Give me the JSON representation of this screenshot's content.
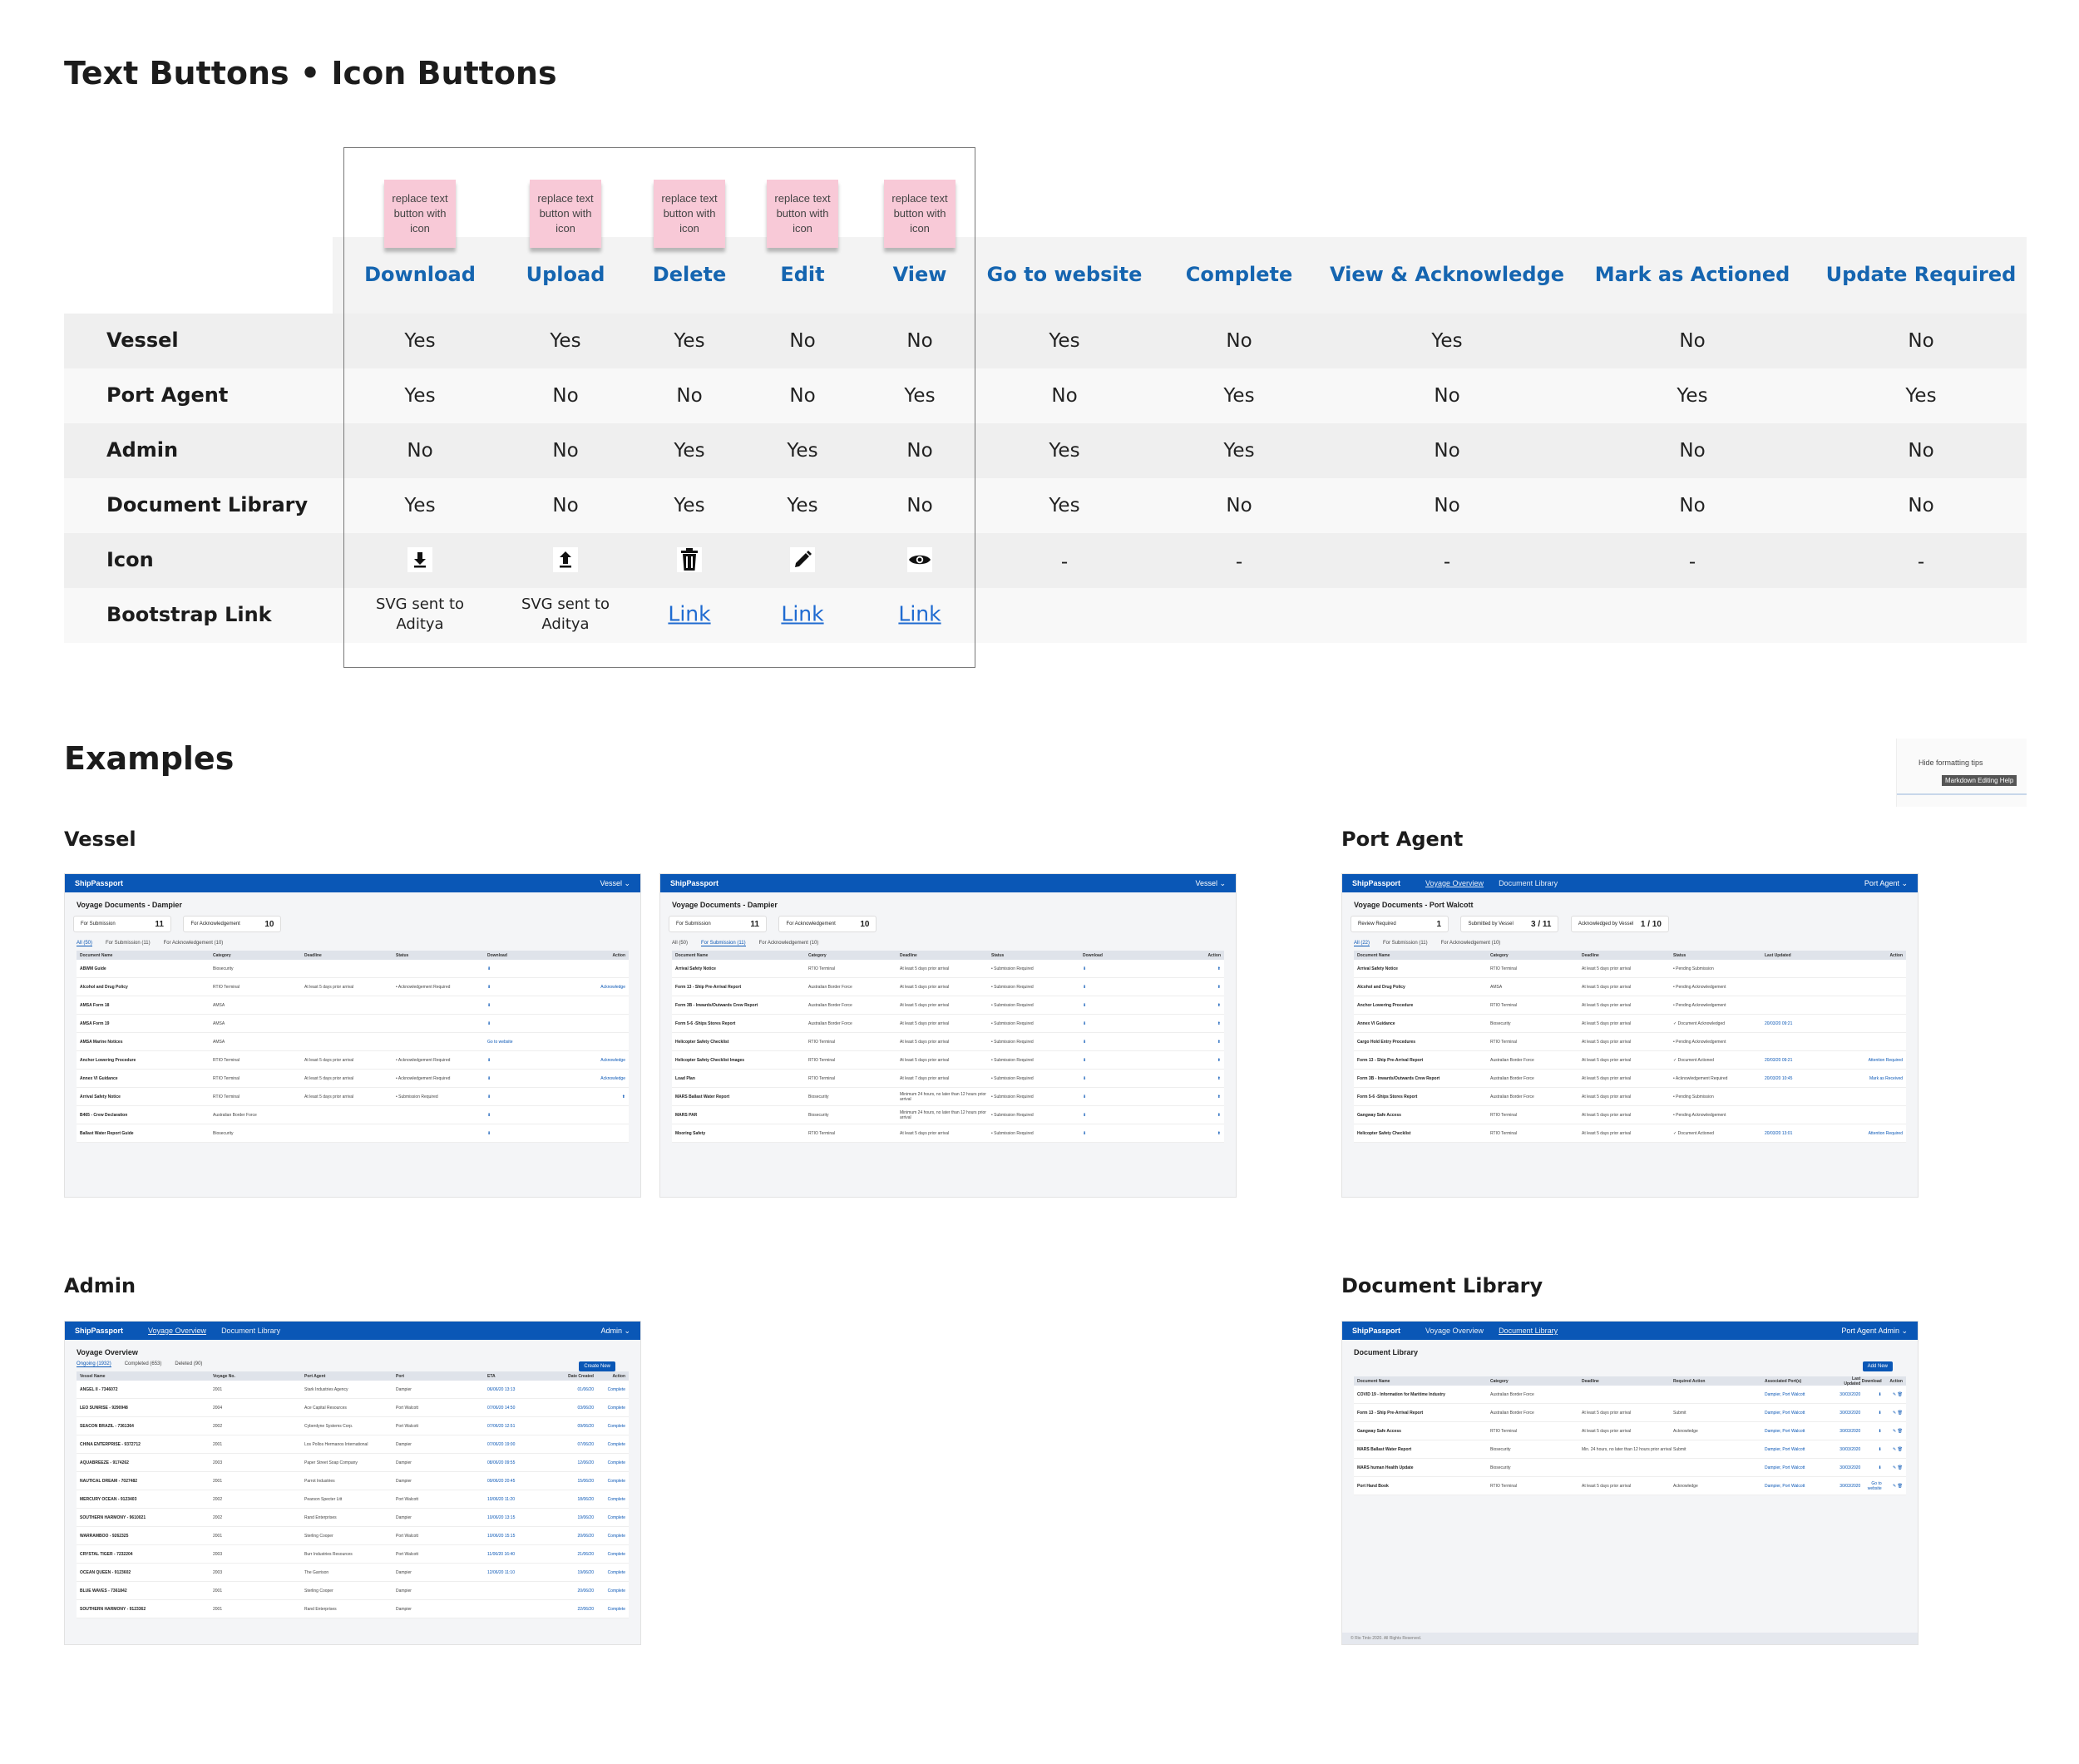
{
  "page": {
    "title": "Text Buttons • Icon Buttons",
    "examples_title": "Examples"
  },
  "stickies": [
    "replace text button with icon",
    "replace text button with icon",
    "replace text button with icon",
    "replace text button with icon",
    "replace text button with icon"
  ],
  "columns": [
    "Download",
    "Upload",
    "Delete",
    "Edit",
    "View",
    "Go to website",
    "Complete",
    "View & Acknowledge",
    "Mark as Actioned",
    "Update Required"
  ],
  "rows": [
    {
      "label": "Vessel",
      "values": [
        "Yes",
        "Yes",
        "Yes",
        "No",
        "No",
        "Yes",
        "No",
        "Yes",
        "No",
        "No"
      ]
    },
    {
      "label": "Port Agent",
      "values": [
        "Yes",
        "No",
        "No",
        "No",
        "Yes",
        "No",
        "Yes",
        "No",
        "Yes",
        "Yes"
      ]
    },
    {
      "label": "Admin",
      "values": [
        "No",
        "No",
        "Yes",
        "Yes",
        "No",
        "Yes",
        "Yes",
        "No",
        "No",
        "No"
      ]
    },
    {
      "label": "Document Library",
      "values": [
        "Yes",
        "No",
        "Yes",
        "Yes",
        "No",
        "Yes",
        "No",
        "No",
        "No",
        "No"
      ]
    }
  ],
  "icon_row": {
    "label": "Icon",
    "icons": [
      "download-icon",
      "upload-icon",
      "trash-icon",
      "pencil-icon",
      "eye-icon"
    ],
    "dashes": [
      "-",
      "-",
      "-",
      "-",
      "-"
    ]
  },
  "bootstrap_row": {
    "label": "Bootstrap Link",
    "values": [
      "SVG sent to Aditya",
      "SVG sent to Aditya",
      "Link",
      "Link",
      "Link"
    ]
  },
  "overlay": {
    "hide_tips": "Hide formatting tips",
    "tooltip": "Markdown Editing Help"
  },
  "sections": {
    "vessel": "Vessel",
    "port_agent": "Port Agent",
    "admin": "Admin",
    "document_library": "Document Library"
  },
  "shots": {
    "vessel1": {
      "brand": "ShipPassport",
      "user": "Vessel ⌄",
      "title": "Voyage Documents - Dampier",
      "card1": "For Submission",
      "card1_n": "11",
      "card2": "For Acknowledgement",
      "card2_n": "10",
      "tabs": [
        "All (50)",
        "For Submission (11)",
        "For Acknowledgement (10)"
      ],
      "headers": [
        "Document Name",
        "Category",
        "Deadline",
        "Status",
        "Download",
        "Action"
      ],
      "rows": [
        [
          "ABWM Guide",
          "Biosecurity",
          "",
          "",
          "⬇",
          ""
        ],
        [
          "Alcohol and Drug Policy",
          "RTIO Terminal",
          "At least 5 days prior arrival",
          "• Acknowledgement Required",
          "⬇",
          "Acknowledge"
        ],
        [
          "AMSA Form 18",
          "AMSA",
          "",
          "",
          "⬇",
          ""
        ],
        [
          "AMSA Form 19",
          "AMSA",
          "",
          "",
          "⬇",
          ""
        ],
        [
          "AMSA Marine Notices",
          "AMSA",
          "",
          "",
          "Go to website",
          ""
        ],
        [
          "Anchor Lowering Procedure",
          "RTIO Terminal",
          "At least 5 days prior arrival",
          "• Acknowledgement Required",
          "⬇",
          "Acknowledge"
        ],
        [
          "Annex VI Guidance",
          "RTIO Terminal",
          "At least 5 days prior arrival",
          "• Acknowledgement Required",
          "⬇",
          "Acknowledge"
        ],
        [
          "Arrival Safety Notice",
          "RTIO Terminal",
          "At least 5 days prior arrival",
          "• Submission Required",
          "⬇",
          "⬆"
        ],
        [
          "B465 - Crew Declaration",
          "Australian Border Force",
          "",
          "",
          "⬇",
          ""
        ],
        [
          "Ballast Water Report Guide",
          "Biosecurity",
          "",
          "",
          "⬇",
          ""
        ]
      ]
    },
    "vessel2": {
      "brand": "ShipPassport",
      "user": "Vessel ⌄",
      "title": "Voyage Documents - Dampier",
      "card1": "For Submission",
      "card1_n": "11",
      "card2": "For Acknowledgement",
      "card2_n": "10",
      "tabs": [
        "All (50)",
        "For Submission (11)",
        "For Acknowledgement (10)"
      ],
      "headers": [
        "Document Name",
        "Category",
        "Deadline",
        "Status",
        "Download",
        "Action"
      ],
      "rows": [
        [
          "Arrival Safety Notice",
          "RTIO Terminal",
          "At least 5 days prior arrival",
          "• Submission Required",
          "⬇",
          "⬆"
        ],
        [
          "Form 13 - Ship Pre-Arrival Report",
          "Australian Border Force",
          "At least 5 days prior arrival",
          "• Submission Required",
          "⬇",
          "⬆"
        ],
        [
          "Form 3B - Inwards/Outwards Crew Report",
          "Australian Border Force",
          "At least 5 days prior arrival",
          "• Submission Required",
          "⬇",
          "⬆"
        ],
        [
          "Form 5-6 -Ships Stores Report",
          "Australian Border Force",
          "At least 5 days prior arrival",
          "• Submission Required",
          "⬇",
          "⬆"
        ],
        [
          "Helicopter Safety Checklist",
          "RTIO Terminal",
          "At least 5 days prior arrival",
          "• Submission Required",
          "⬇",
          "⬆"
        ],
        [
          "Helicopter Safety Checklist Images",
          "RTIO Terminal",
          "At least 5 days prior arrival",
          "• Submission Required",
          "⬇",
          "⬆"
        ],
        [
          "Load Plan",
          "RTIO Terminal",
          "At least 7 days prior arrival",
          "• Submission Required",
          "⬇",
          "⬆"
        ],
        [
          "MARS Ballast Water Report",
          "Biosecurity",
          "Minimum 24 hours, no later than 12 hours prior arrival",
          "• Submission Required",
          "⬇",
          "⬆"
        ],
        [
          "MARS PAR",
          "Biosecurity",
          "Minimum 24 hours, no later than 12 hours prior arrival",
          "• Submission Required",
          "⬇",
          "⬆"
        ],
        [
          "Mooring Safety",
          "RTIO Terminal",
          "At least 5 days prior arrival",
          "• Submission Required",
          "⬇",
          "⬆"
        ]
      ]
    },
    "port": {
      "brand": "ShipPassport",
      "nav": [
        "Voyage Overview",
        "Document Library"
      ],
      "user": "Port Agent ⌄",
      "title": "Voyage Documents - Port Walcott",
      "card1": "Review Required",
      "card1_n": "1",
      "card2": "Submitted by Vessel",
      "card2_n": "3 / 11",
      "card3": "Acknowledged by Vessel",
      "card3_n": "1 / 10",
      "tabs": [
        "All (22)",
        "For Submission (11)",
        "For Acknowledgement (10)"
      ],
      "headers": [
        "Document Name",
        "Category",
        "Deadline",
        "Status",
        "Last Updated",
        "Action"
      ],
      "rows": [
        [
          "Arrival Safety Notice",
          "RTIO Terminal",
          "At least 5 days prior arrival",
          "• Pending Submission",
          "",
          ""
        ],
        [
          "Alcohol and Drug Policy",
          "AMSA",
          "At least 5 days prior arrival",
          "• Pending Acknowledgement",
          "",
          ""
        ],
        [
          "Anchor Lowering Procedure",
          "RTIO Terminal",
          "At least 5 days prior arrival",
          "• Pending Acknowledgement",
          "",
          ""
        ],
        [
          "Annex VI Guidance",
          "Biosecurity",
          "At least 5 days prior arrival",
          "✓ Document Acknowledged",
          "20/03/20 09:21",
          ""
        ],
        [
          "Cargo Hold Entry Procedures",
          "RTIO Terminal",
          "At least 5 days prior arrival",
          "• Pending Acknowledgement",
          "",
          ""
        ],
        [
          "Form 13 - Ship Pre-Arrival Report",
          "Australian Border Force",
          "At least 5 days prior arrival",
          "✓ Document Actioned",
          "20/03/20 09:21",
          "Attention Required"
        ],
        [
          "Form 3B - Inwards/Outwards Crew Report",
          "Australian Border Force",
          "At least 5 days prior arrival",
          "• Acknowledgement Required",
          "20/03/20 10:45",
          "Mark as Received"
        ],
        [
          "Form 5-6 -Ships Stores Report",
          "Australian Border Force",
          "At least 5 days prior arrival",
          "• Pending Submission",
          "",
          ""
        ],
        [
          "Gangway Safe Access",
          "RTIO Terminal",
          "At least 5 days prior arrival",
          "• Pending Acknowledgement",
          "",
          ""
        ],
        [
          "Helicopter Safety Checklist",
          "RTIO Terminal",
          "At least 5 days prior arrival",
          "✓ Document Actioned",
          "20/03/20 13:01",
          "Attention Required"
        ]
      ]
    },
    "admin": {
      "brand": "ShipPassport",
      "nav": [
        "Voyage Overview",
        "Document Library"
      ],
      "user": "Admin ⌄",
      "title": "Voyage Overview",
      "tabs": [
        "Ongoing (1932)",
        "Completed (653)",
        "Deleted (90)"
      ],
      "new_btn": "Create New",
      "headers": [
        "Vessel Name",
        "Voyage No.",
        "Port Agent",
        "Port",
        "ETA",
        "Date Created",
        "Action"
      ],
      "rows": [
        [
          "ANGEL II - 7346072",
          "2001",
          "Stark Industries Agency",
          "Dampier",
          "06/06/20 13:13",
          "01/06/20",
          "Complete"
        ],
        [
          "LEO SUNRISE - 9290948",
          "2004",
          "Ace Capital Resources",
          "Port Walcott",
          "07/06/20 14:50",
          "03/06/20",
          "Complete"
        ],
        [
          "SEACON BRAZIL - 7361364",
          "2002",
          "Cyberdyne Systems Corp.",
          "Port Walcott",
          "07/06/20 12:51",
          "09/06/20",
          "Complete"
        ],
        [
          "CHINA ENTERPRISE - 9372712",
          "2001",
          "Los Pollos Hermanos International",
          "Dampier",
          "07/06/20 19:00",
          "07/06/20",
          "Complete"
        ],
        [
          "AQUABREEZE - 9174262",
          "2003",
          "Paper Street Soap Company",
          "Dampier",
          "08/06/20 09:55",
          "12/06/20",
          "Complete"
        ],
        [
          "NAUTICAL DREAM - 7027482",
          "2001",
          "Parrot Industries",
          "Dampier",
          "09/06/20 20:45",
          "15/06/20",
          "Complete"
        ],
        [
          "MERCURY OCEAN - 9123403",
          "2002",
          "Pearson Specter Litt",
          "Port Walcott",
          "10/06/20 11:20",
          "18/06/20",
          "Complete"
        ],
        [
          "SOUTHERN HARMONY - 9610021",
          "2002",
          "Rand Enterprises",
          "Dampier",
          "10/06/20 13:15",
          "19/06/20",
          "Complete"
        ],
        [
          "WARRAMBOO - 9262325",
          "2001",
          "Sterling Cooper",
          "Port Walcott",
          "10/06/20 15:15",
          "20/06/20",
          "Complete"
        ],
        [
          "CRYSTAL TIGER - 7232204",
          "2003",
          "Burr Industries Resources",
          "Port Walcott",
          "11/06/20 16:40",
          "21/06/20",
          "Complete"
        ],
        [
          "OCEAN QUEEN - 9123602",
          "2003",
          "The Garrison",
          "Dampier",
          "12/06/20 11:10",
          "19/06/20",
          "Complete"
        ],
        [
          "BLUE WAVES - 7361842",
          "2001",
          "Sterling Cooper",
          "Dampier",
          "",
          "20/06/20",
          "Complete"
        ],
        [
          "SOUTHERN HARMONY - 9123362",
          "2001",
          "Rand Enterprises",
          "Dampier",
          "",
          "22/06/20",
          "Complete"
        ]
      ]
    },
    "library": {
      "brand": "ShipPassport",
      "nav": [
        "Voyage Overview",
        "Document Library"
      ],
      "user": "Port Agent Admin ⌄",
      "title": "Document Library",
      "new_btn": "Add New",
      "headers": [
        "Document Name",
        "Category",
        "Deadline",
        "Required Action",
        "Associated Port(s)",
        "Last Updated",
        "Download",
        "Action"
      ],
      "rows": [
        [
          "COVID 19 - Information for Maritime Industry",
          "Australian Border Force",
          "",
          "",
          "Dampier, Port Walcott",
          "30/03/2020",
          "⬇",
          "✎ 🗑"
        ],
        [
          "Form 13 - Ship Pre-Arrival Report",
          "Australian Border Force",
          "At least 5 days prior arrival",
          "Submit",
          "Dampier, Port Walcott",
          "30/03/2020",
          "⬇",
          "✎ 🗑"
        ],
        [
          "Gangway Safe Access",
          "RTIO Terminal",
          "At least 5 days prior arrival",
          "Acknowledge",
          "Dampier, Port Walcott",
          "30/03/2020",
          "⬇",
          "✎ 🗑"
        ],
        [
          "MARS Ballast Water Report",
          "Biosecurity",
          "Min. 24 hours, no later than 12 hours prior arrival",
          "Submit",
          "Dampier, Port Walcott",
          "30/03/2020",
          "⬇",
          "✎ 🗑"
        ],
        [
          "MARS human Health Update",
          "Biosecurity",
          "",
          "",
          "Dampier, Port Walcott",
          "30/03/2020",
          "⬇",
          "✎ 🗑"
        ],
        [
          "Port Hand Book",
          "RTIO Terminal",
          "At least 5 days prior arrival",
          "Acknowledge",
          "Dampier, Port Walcott",
          "30/03/2020",
          "Go to website",
          "✎ 🗑"
        ]
      ],
      "footer": "© Rio Tinto 2020. All Rights Reserved."
    }
  }
}
